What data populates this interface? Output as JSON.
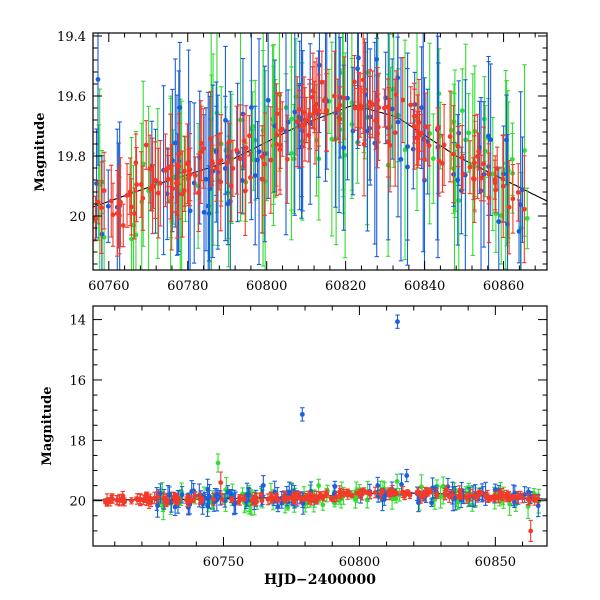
{
  "chart_data": [
    {
      "type": "scatter",
      "title": "",
      "xlabel": "",
      "ylabel": "Magnitude",
      "xlim": [
        60756,
        60871
      ],
      "ylim": [
        20.18,
        19.39
      ],
      "y_inverted": true,
      "x_ticks": [
        "60760",
        "60780",
        "60800",
        "60820",
        "60840",
        "60860"
      ],
      "y_ticks": [
        "19.4",
        "19.6",
        "19.8",
        "20"
      ],
      "trend_line": {
        "x": [
          60756,
          60771,
          60790,
          60808,
          60822,
          60833,
          60848,
          60871
        ],
        "y": [
          19.97,
          19.9,
          19.82,
          19.7,
          19.63,
          19.67,
          19.8,
          19.95
        ]
      },
      "series": [
        {
          "color": "#1a5fdc",
          "style": "points with error bars"
        },
        {
          "color": "#33dd33",
          "style": "points with error bars"
        },
        {
          "color": "#f23a2a",
          "style": "points with error bars"
        }
      ]
    },
    {
      "type": "scatter",
      "title": "",
      "xlabel": "HJD−2400000",
      "ylabel": "Magnitude",
      "xlim": [
        60702,
        60869
      ],
      "ylim": [
        21.5,
        13.55
      ],
      "y_inverted": true,
      "x_ticks": [
        "60750",
        "60800",
        "60850"
      ],
      "y_ticks": [
        "14",
        "16",
        "18",
        "20"
      ],
      "trend_line": {
        "x": [
          60702,
          60745,
          60780,
          60810,
          60830,
          60869
        ],
        "y": [
          19.98,
          19.95,
          19.87,
          19.73,
          19.77,
          19.95
        ]
      },
      "outliers": [
        {
          "color": "#1a5fdc",
          "x": 60814,
          "y": 14.07,
          "err": 0.22
        },
        {
          "color": "#1a5fdc",
          "x": 60779,
          "y": 17.14,
          "err": 0.22
        },
        {
          "color": "#33dd33",
          "x": 60748,
          "y": 18.75,
          "err": 0.3
        },
        {
          "color": "#f23a2a",
          "x": 60749,
          "y": 19.4,
          "err": 0.35
        },
        {
          "color": "#f23a2a",
          "x": 60863,
          "y": 21.0,
          "err": 0.35
        }
      ],
      "series": [
        {
          "color": "#1a5fdc",
          "style": "points with error bars"
        },
        {
          "color": "#33dd33",
          "style": "points with error bars"
        },
        {
          "color": "#f23a2a",
          "style": "points with error bars"
        }
      ]
    }
  ]
}
